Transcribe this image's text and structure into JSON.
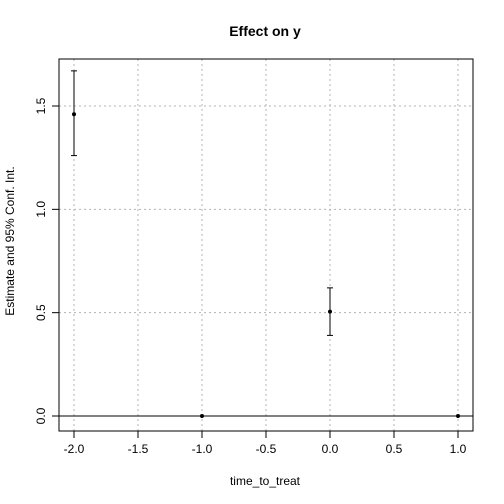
{
  "chart_data": {
    "type": "scatter",
    "title": "Effect on y",
    "xlabel": "time_to_treat",
    "ylabel": "Estimate and 95% Conf. Int.",
    "xlim": [
      -2.0,
      1.0
    ],
    "ylim": [
      0.0,
      1.6
    ],
    "x_ticks": [
      "-2.0",
      "-1.5",
      "-1.0",
      "-0.5",
      "0.0",
      "0.5",
      "1.0"
    ],
    "y_ticks": [
      "0.0",
      "0.5",
      "1.0",
      "1.5"
    ],
    "grid": true,
    "reference_line_y": 0,
    "points": [
      {
        "x": -2,
        "y": 1.46,
        "ci_low": 1.26,
        "ci_high": 1.67
      },
      {
        "x": -1,
        "y": 0.0,
        "ci_low": 0.0,
        "ci_high": 0.0
      },
      {
        "x": 0,
        "y": 0.505,
        "ci_low": 0.39,
        "ci_high": 0.62
      },
      {
        "x": 1,
        "y": 0.0,
        "ci_low": 0.0,
        "ci_high": 0.0
      }
    ]
  }
}
